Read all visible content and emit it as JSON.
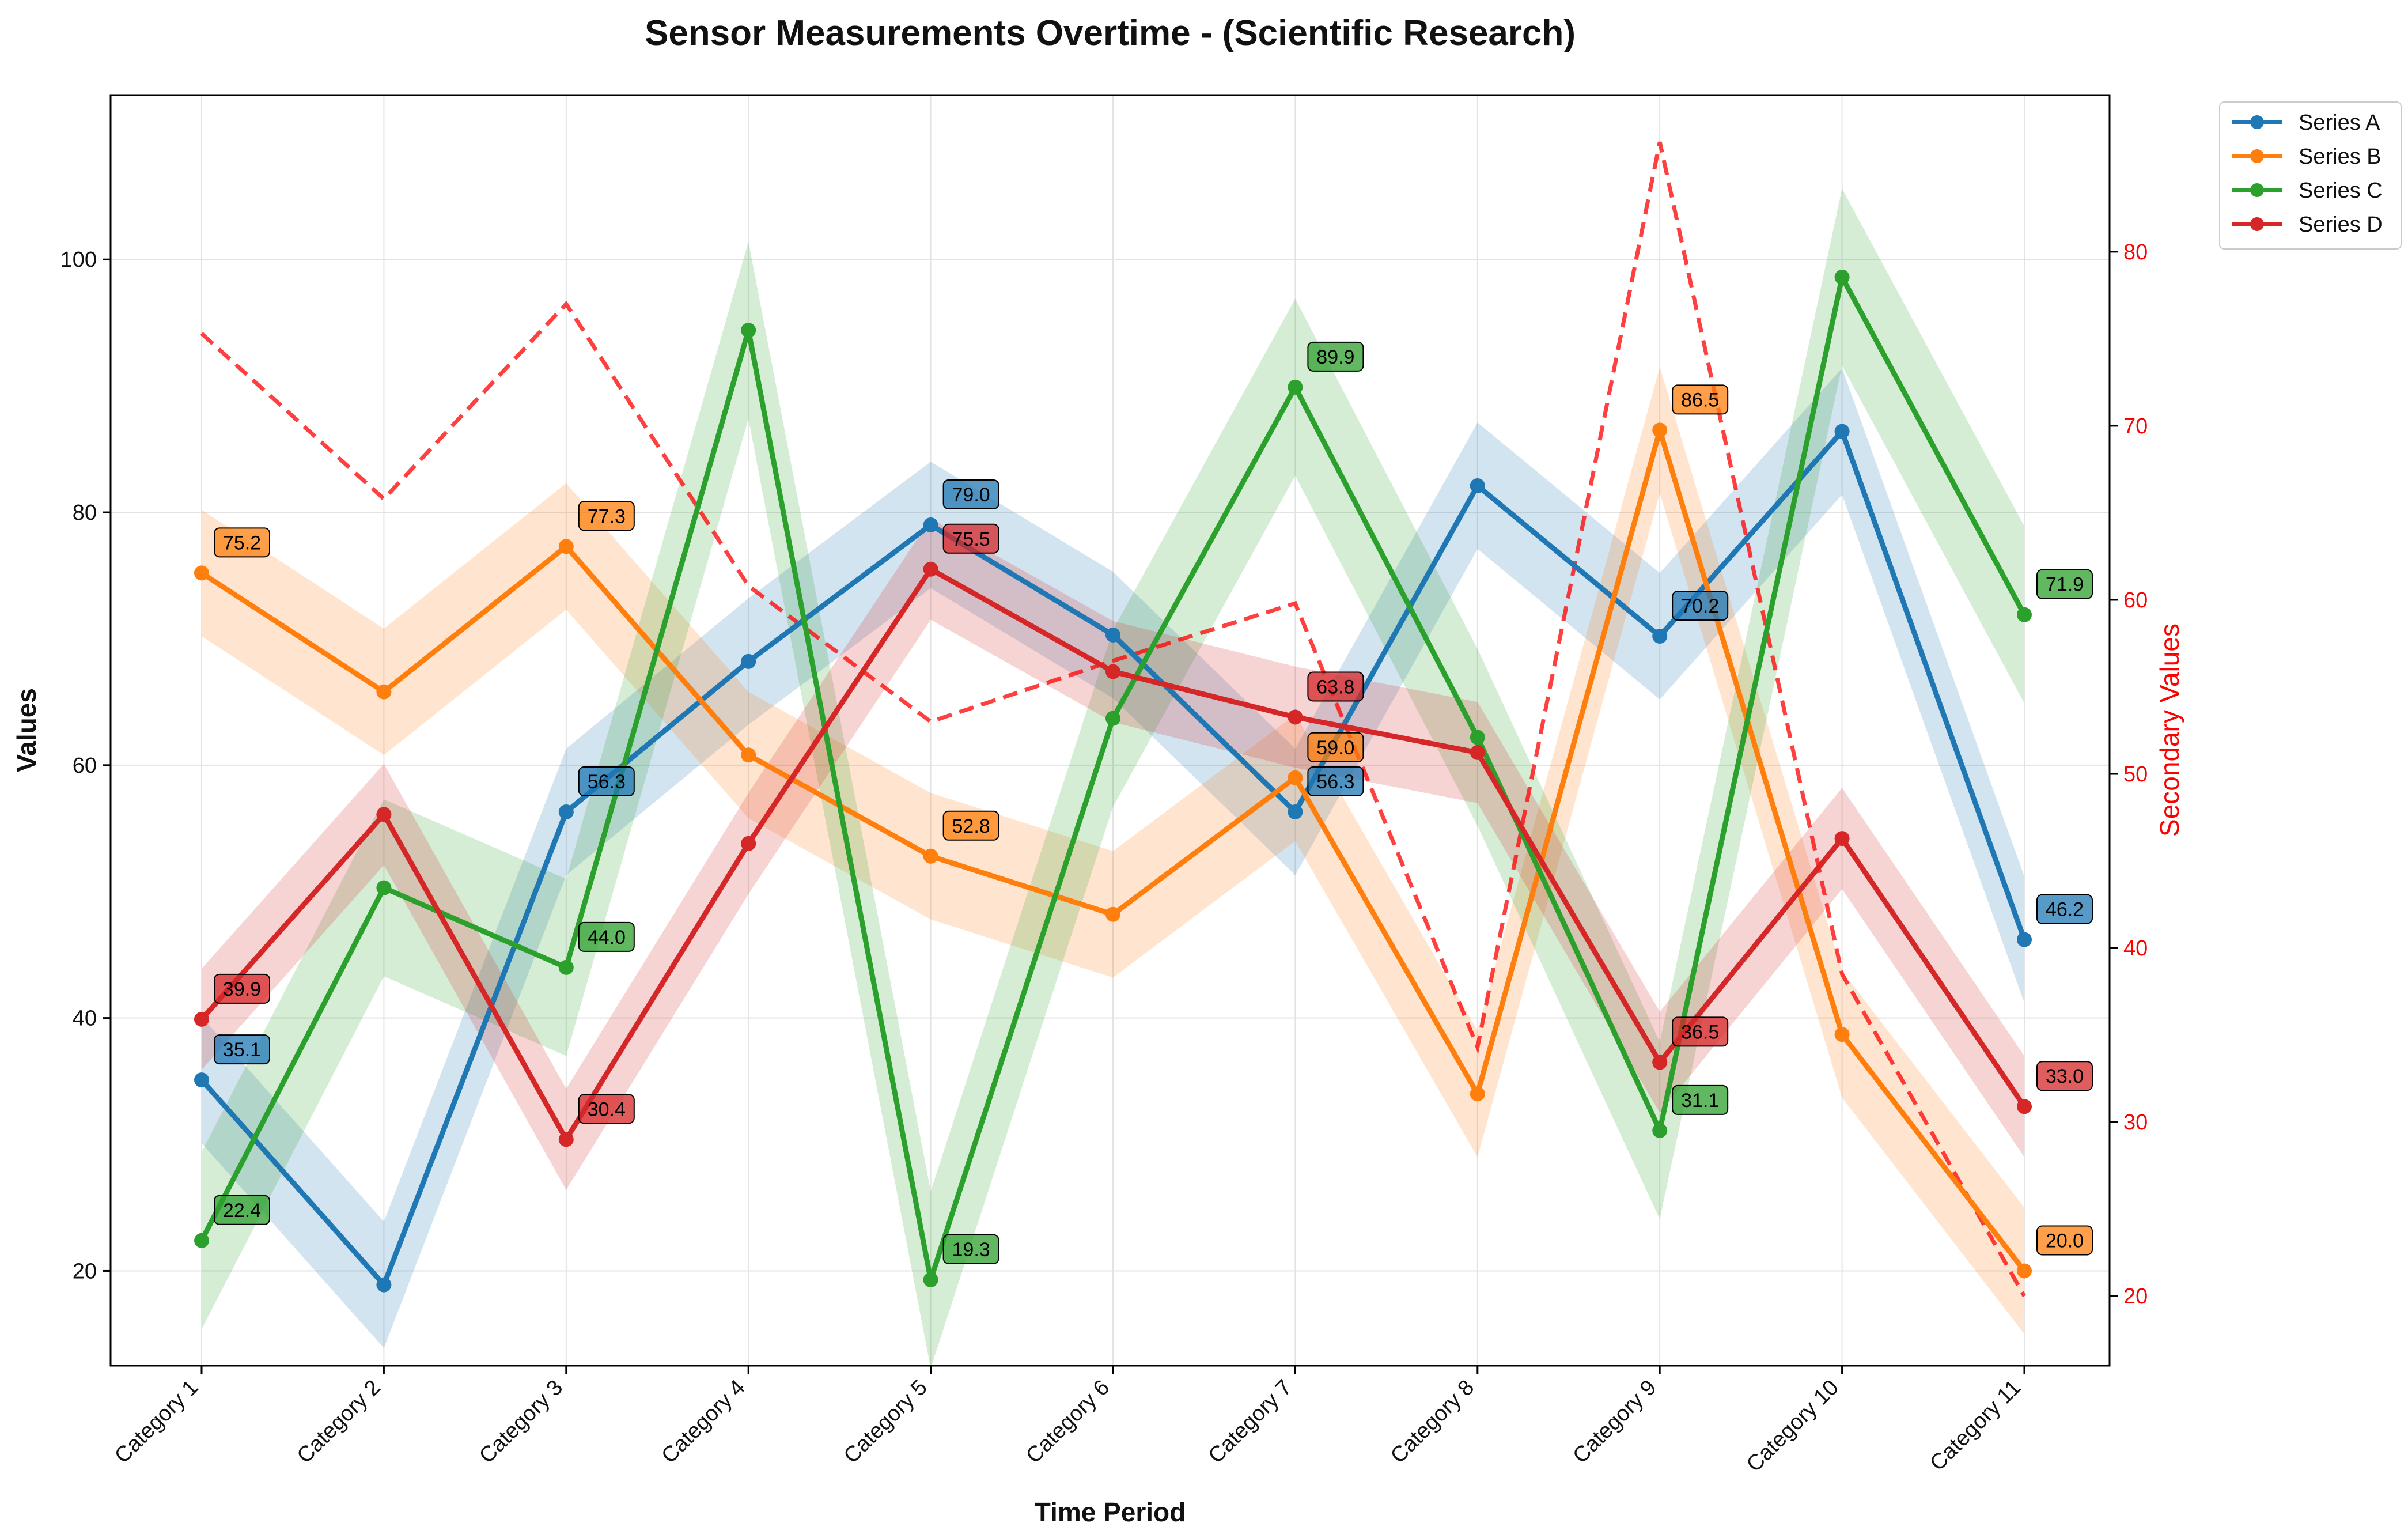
{
  "chart_data": {
    "type": "line",
    "title": "Sensor Measurements Overtime - (Scientific Research)",
    "xlabel": "Time Period",
    "ylabel": "Values",
    "y2label": "Secondary Values",
    "categories": [
      "Category 1",
      "Category 2",
      "Category 3",
      "Category 4",
      "Category 5",
      "Category 6",
      "Category 7",
      "Category 8",
      "Category 9",
      "Category 10",
      "Category 11"
    ],
    "ylim": [
      12.5,
      113
    ],
    "y2lim": [
      16,
      89
    ],
    "yticks": [
      20,
      40,
      60,
      80,
      100
    ],
    "y2ticks": [
      20,
      30,
      40,
      50,
      60,
      70,
      80
    ],
    "grid": true,
    "legend_position": "top-right",
    "series": [
      {
        "name": "Series A",
        "color": "#1f77b4",
        "values": [
          35.1,
          18.9,
          56.3,
          68.2,
          79.0,
          70.3,
          56.3,
          82.1,
          70.2,
          86.4,
          46.2
        ],
        "band": 5
      },
      {
        "name": "Series B",
        "color": "#ff7f0e",
        "values": [
          75.2,
          65.8,
          77.3,
          60.8,
          52.8,
          48.2,
          59.0,
          34.0,
          86.5,
          38.7,
          20.0
        ],
        "band": 5
      },
      {
        "name": "Series C",
        "color": "#2ca02c",
        "values": [
          22.4,
          50.3,
          44.0,
          94.4,
          19.3,
          63.7,
          89.9,
          62.2,
          31.1,
          98.6,
          71.9
        ],
        "band": 7
      },
      {
        "name": "Series D",
        "color": "#d62728",
        "values": [
          39.9,
          56.1,
          30.4,
          53.8,
          75.5,
          67.4,
          63.8,
          61.0,
          36.5,
          54.2,
          33.0
        ],
        "band": 4
      }
    ],
    "secondary_series": {
      "style": "dashed",
      "color": "#ff0000",
      "values": [
        75.3,
        65.8,
        77.0,
        60.8,
        53.0,
        56.5,
        59.8,
        34.3,
        86.3,
        38.5,
        20.0
      ]
    },
    "data_labels": [
      {
        "series": 0,
        "index": 0,
        "text": "35.1"
      },
      {
        "series": 0,
        "index": 2,
        "text": "56.3"
      },
      {
        "series": 0,
        "index": 4,
        "text": "79.0"
      },
      {
        "series": 0,
        "index": 6,
        "text": "56.3"
      },
      {
        "series": 0,
        "index": 8,
        "text": "70.2"
      },
      {
        "series": 0,
        "index": 10,
        "text": "46.2"
      },
      {
        "series": 1,
        "index": 0,
        "text": "75.2"
      },
      {
        "series": 1,
        "index": 2,
        "text": "77.3"
      },
      {
        "series": 1,
        "index": 4,
        "text": "52.8"
      },
      {
        "series": 1,
        "index": 6,
        "text": "59.0"
      },
      {
        "series": 1,
        "index": 8,
        "text": "86.5"
      },
      {
        "series": 1,
        "index": 10,
        "text": "20.0"
      },
      {
        "series": 2,
        "index": 0,
        "text": "22.4"
      },
      {
        "series": 2,
        "index": 2,
        "text": "44.0"
      },
      {
        "series": 2,
        "index": 4,
        "text": "19.3"
      },
      {
        "series": 2,
        "index": 6,
        "text": "89.9"
      },
      {
        "series": 2,
        "index": 8,
        "text": "31.1"
      },
      {
        "series": 2,
        "index": 10,
        "text": "71.9"
      },
      {
        "series": 3,
        "index": 0,
        "text": "39.9"
      },
      {
        "series": 3,
        "index": 2,
        "text": "30.4"
      },
      {
        "series": 3,
        "index": 4,
        "text": "75.5"
      },
      {
        "series": 3,
        "index": 6,
        "text": "63.8"
      },
      {
        "series": 3,
        "index": 8,
        "text": "36.5"
      },
      {
        "series": 3,
        "index": 10,
        "text": "33.0"
      }
    ]
  }
}
